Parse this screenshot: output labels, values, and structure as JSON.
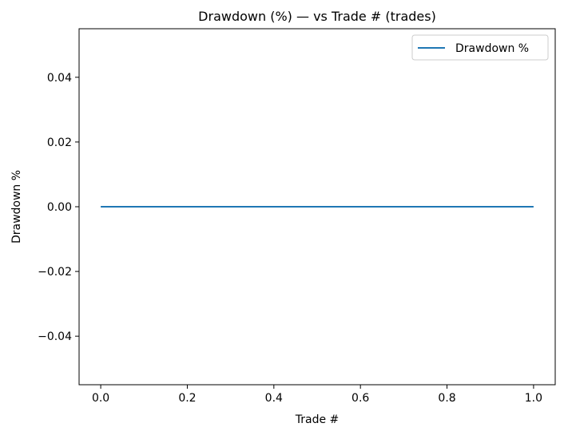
{
  "chart_data": {
    "type": "line",
    "title": "Drawdown (%) — vs Trade # (trades)",
    "xlabel": "Trade #",
    "ylabel": "Drawdown %",
    "xlim": [
      -0.05,
      1.05
    ],
    "ylim": [
      -0.055,
      0.055
    ],
    "xticks": [
      0.0,
      0.2,
      0.4,
      0.6,
      0.8,
      1.0
    ],
    "xtick_labels": [
      "0.0",
      "0.2",
      "0.4",
      "0.6",
      "0.8",
      "1.0"
    ],
    "yticks": [
      -0.04,
      -0.02,
      0.0,
      0.02,
      0.04
    ],
    "ytick_labels": [
      "−0.04",
      "−0.02",
      "0.00",
      "0.02",
      "0.04"
    ],
    "grid": false,
    "legend_position": "top-right",
    "series": [
      {
        "name": "Drawdown %",
        "color": "#1f77b4",
        "x": [
          0,
          1
        ],
        "y": [
          0,
          0
        ]
      }
    ]
  }
}
